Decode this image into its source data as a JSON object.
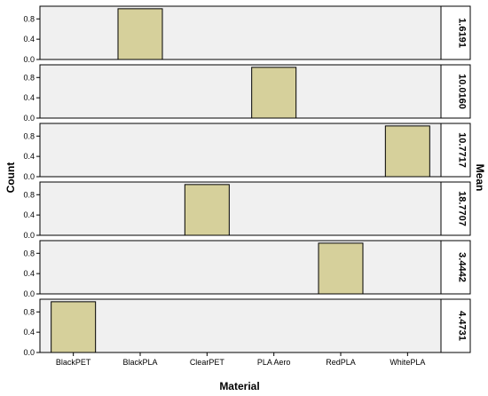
{
  "chart_data": {
    "type": "bar",
    "layout": "small-multiples-stacked",
    "categories": [
      "BlackPET",
      "BlackPLA",
      "ClearPET",
      "PLA Aero",
      "RedPLA",
      "WhitePLA"
    ],
    "xlabel": "Material",
    "ylabel": "Count",
    "right_label": "Mean",
    "yticks": [
      "0.0",
      "0.4",
      "0.8"
    ],
    "ylim": [
      0,
      1.05
    ],
    "bar_color": "#d6d09b",
    "panel_bg": "#f0f0f0",
    "panels": [
      {
        "label": "1.6191",
        "values": [
          0,
          1,
          0,
          0,
          0,
          0
        ]
      },
      {
        "label": "10.0160",
        "values": [
          0,
          0,
          0,
          1,
          0,
          0
        ]
      },
      {
        "label": "10.7717",
        "values": [
          0,
          0,
          0,
          0,
          0,
          1
        ]
      },
      {
        "label": "18.7707",
        "values": [
          0,
          0,
          1,
          0,
          0,
          0
        ]
      },
      {
        "label": "3.4442",
        "values": [
          0,
          0,
          0,
          0,
          1,
          0
        ]
      },
      {
        "label": "4.4731",
        "values": [
          1,
          0,
          0,
          0,
          0,
          0
        ]
      }
    ]
  }
}
